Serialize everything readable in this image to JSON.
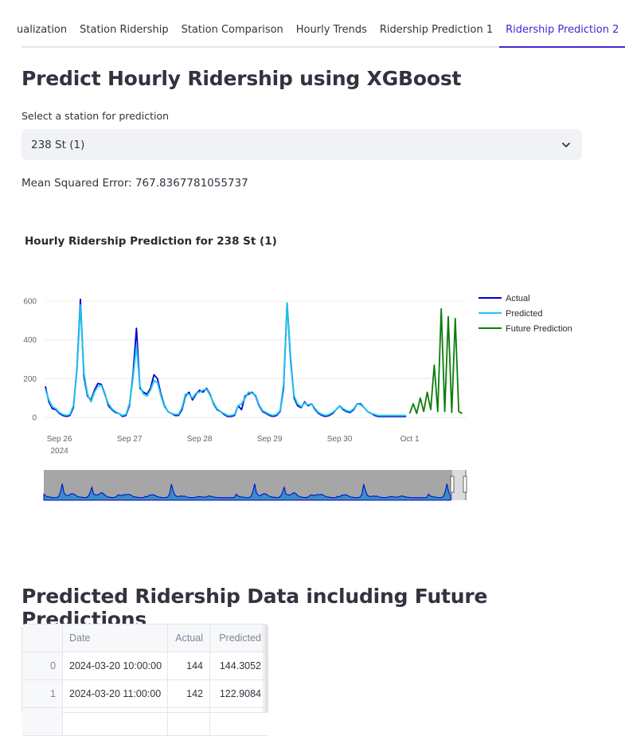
{
  "tabs": [
    {
      "label": "ualization",
      "active": false
    },
    {
      "label": "Station Ridership",
      "active": false
    },
    {
      "label": "Station Comparison",
      "active": false
    },
    {
      "label": "Hourly Trends",
      "active": false
    },
    {
      "label": "Ridership Prediction 1",
      "active": false
    },
    {
      "label": "Ridership Prediction 2",
      "active": true
    }
  ],
  "page": {
    "title": "Predict Hourly Ridership using XGBoost",
    "select_label": "Select a station for prediction",
    "selected_station": "238 St (1)",
    "mse_text": "Mean Squared Error: 767.8367781055737",
    "table_title": "Predicted Ridership Data including Future Predictions"
  },
  "chart_data": {
    "type": "line",
    "title": "Hourly Ridership Prediction for 238 St (1)",
    "x_ticks": [
      "Sep 26",
      "Sep 27",
      "Sep 28",
      "Sep 29",
      "Sep 30",
      "Oct 1"
    ],
    "x_year_label": "2024",
    "y_ticks": [
      "0",
      "200",
      "400",
      "600"
    ],
    "ylim": [
      0,
      650
    ],
    "xlim_days": [
      -0.2,
      5.8
    ],
    "legend": [
      {
        "name": "Actual",
        "color": "#0000cc"
      },
      {
        "name": "Predicted",
        "color": "#1ec8f0"
      },
      {
        "name": "Future Prediction",
        "color": "#0a7d0a"
      }
    ],
    "series": [
      {
        "name": "Actual",
        "color": "#0000cc",
        "x": [
          -0.2,
          -0.15,
          -0.1,
          -0.05,
          0.0,
          0.05,
          0.1,
          0.15,
          0.2,
          0.25,
          0.3,
          0.35,
          0.4,
          0.45,
          0.5,
          0.55,
          0.6,
          0.65,
          0.7,
          0.75,
          0.8,
          0.85,
          0.9,
          0.95,
          1.0,
          1.05,
          1.1,
          1.15,
          1.2,
          1.25,
          1.3,
          1.35,
          1.4,
          1.45,
          1.5,
          1.55,
          1.6,
          1.65,
          1.7,
          1.75,
          1.8,
          1.85,
          1.9,
          1.95,
          2.0,
          2.05,
          2.1,
          2.15,
          2.2,
          2.25,
          2.3,
          2.35,
          2.4,
          2.45,
          2.5,
          2.55,
          2.6,
          2.65,
          2.7,
          2.75,
          2.8,
          2.85,
          2.9,
          2.95,
          3.0,
          3.05,
          3.1,
          3.15,
          3.2,
          3.25,
          3.3,
          3.35,
          3.4,
          3.45,
          3.5,
          3.55,
          3.6,
          3.65,
          3.7,
          3.75,
          3.8,
          3.85,
          3.9,
          3.95,
          4.0,
          4.05,
          4.1,
          4.15,
          4.2,
          4.25,
          4.3,
          4.35,
          4.4,
          4.45,
          4.5,
          4.55,
          4.6,
          4.65,
          4.7,
          4.75,
          4.8,
          4.85,
          4.9,
          4.95
        ],
        "y": [
          160,
          80,
          45,
          40,
          20,
          10,
          5,
          10,
          50,
          250,
          610,
          210,
          110,
          90,
          140,
          175,
          170,
          120,
          60,
          40,
          25,
          20,
          5,
          10,
          60,
          220,
          460,
          150,
          130,
          120,
          150,
          220,
          200,
          120,
          60,
          30,
          20,
          10,
          10,
          40,
          110,
          130,
          90,
          120,
          140,
          130,
          150,
          120,
          70,
          40,
          30,
          15,
          5,
          5,
          10,
          60,
          40,
          110,
          120,
          130,
          110,
          60,
          30,
          20,
          10,
          5,
          10,
          30,
          150,
          590,
          300,
          100,
          60,
          50,
          80,
          60,
          70,
          40,
          20,
          10,
          5,
          10,
          20,
          40,
          60,
          40,
          30,
          25,
          40,
          70,
          70,
          50,
          30,
          20,
          10,
          5,
          5,
          5,
          5,
          5,
          5,
          5,
          5,
          5
        ],
        "_note": ""
      },
      {
        "name": "Predicted",
        "color": "#1ec8f0",
        "x": [
          -0.2,
          -0.15,
          -0.1,
          -0.05,
          0.0,
          0.05,
          0.1,
          0.15,
          0.2,
          0.25,
          0.3,
          0.35,
          0.4,
          0.45,
          0.5,
          0.55,
          0.6,
          0.65,
          0.7,
          0.75,
          0.8,
          0.85,
          0.9,
          0.95,
          1.0,
          1.05,
          1.1,
          1.15,
          1.2,
          1.25,
          1.3,
          1.35,
          1.4,
          1.45,
          1.5,
          1.55,
          1.6,
          1.65,
          1.7,
          1.75,
          1.8,
          1.85,
          1.9,
          1.95,
          2.0,
          2.05,
          2.1,
          2.15,
          2.2,
          2.25,
          2.3,
          2.35,
          2.4,
          2.45,
          2.5,
          2.55,
          2.6,
          2.65,
          2.7,
          2.75,
          2.8,
          2.85,
          2.9,
          2.95,
          3.0,
          3.05,
          3.1,
          3.15,
          3.2,
          3.25,
          3.3,
          3.35,
          3.4,
          3.45,
          3.5,
          3.55,
          3.6,
          3.65,
          3.7,
          3.75,
          3.8,
          3.85,
          3.9,
          3.95,
          4.0,
          4.05,
          4.1,
          4.15,
          4.2,
          4.25,
          4.3,
          4.35,
          4.4,
          4.45,
          4.5,
          4.55,
          4.6,
          4.65,
          4.7,
          4.75,
          4.8,
          4.85,
          4.9,
          4.95
        ],
        "y": [
          145,
          90,
          55,
          45,
          25,
          15,
          10,
          15,
          60,
          240,
          580,
          230,
          120,
          80,
          130,
          160,
          165,
          115,
          70,
          45,
          30,
          20,
          10,
          15,
          70,
          200,
          370,
          160,
          120,
          110,
          140,
          190,
          180,
          110,
          55,
          30,
          20,
          15,
          15,
          50,
          120,
          120,
          100,
          125,
          130,
          140,
          145,
          115,
          75,
          45,
          30,
          20,
          10,
          10,
          15,
          60,
          70,
          100,
          130,
          125,
          115,
          65,
          35,
          25,
          15,
          10,
          15,
          35,
          170,
          590,
          280,
          110,
          70,
          55,
          75,
          65,
          70,
          45,
          25,
          15,
          10,
          15,
          25,
          40,
          60,
          45,
          35,
          30,
          45,
          70,
          65,
          50,
          30,
          20,
          15,
          10,
          10,
          10,
          10,
          10,
          10,
          10,
          10,
          10
        ]
      },
      {
        "name": "Future Prediction",
        "color": "#0a7d0a",
        "x": [
          5.0,
          5.05,
          5.1,
          5.15,
          5.2,
          5.25,
          5.3,
          5.35,
          5.4,
          5.45,
          5.5,
          5.55,
          5.6,
          5.65,
          5.7,
          5.75
        ],
        "y": [
          20,
          70,
          20,
          100,
          30,
          130,
          40,
          270,
          30,
          560,
          30,
          520,
          25,
          510,
          30,
          20
        ]
      }
    ]
  },
  "table": {
    "columns": [
      "",
      "Date",
      "Actual",
      "Predicted"
    ],
    "rows": [
      {
        "index": "0",
        "date": "2024-03-20 10:00:00",
        "actual": "144",
        "predicted": "144.3052"
      },
      {
        "index": "1",
        "date": "2024-03-20 11:00:00",
        "actual": "142",
        "predicted": "122.9084"
      },
      {
        "index": "",
        "date": "",
        "actual": "",
        "predicted": ""
      }
    ]
  }
}
